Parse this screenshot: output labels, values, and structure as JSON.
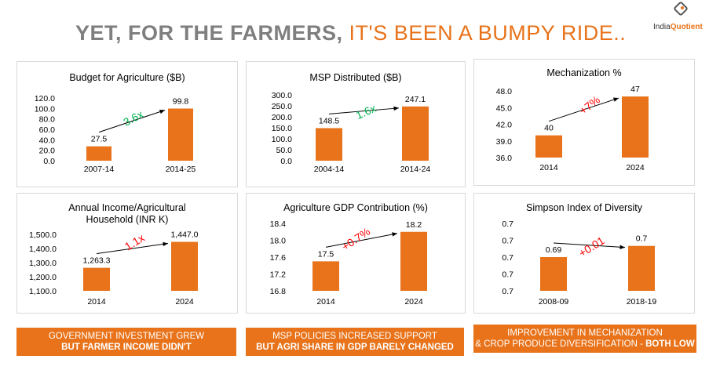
{
  "header": {
    "title_part1": "YET, FOR THE FARMERS,",
    "title_part2": "IT'S BEEN A BUMPY RIDE..",
    "logo_text": "India",
    "logo_text_accent": "Quotient"
  },
  "colors": {
    "bar": "#e8731a",
    "title_grey": "#7f7f7f",
    "accent_red": "#ff0000",
    "accent_green": "#00b050"
  },
  "banners": [
    {
      "line1": "GOVERNMENT INVESTMENT GREW",
      "line2": "BUT FARMER INCOME DIDN'T"
    },
    {
      "line1": "MSP POLICIES INCREASED SUPPORT",
      "line2": "BUT AGRI SHARE IN GDP BARELY CHANGED"
    },
    {
      "line1": "IMPROVEMENT IN MECHANIZATION",
      "line2_prefix": "& CROP PRODUCE DIVERSIFICATION - ",
      "line2_bold": "BOTH LOW"
    }
  ],
  "chart_data": [
    {
      "type": "bar",
      "title": [
        "Budget for Agriculture ($B)"
      ],
      "categories": [
        "2007-14",
        "2014-25"
      ],
      "values": [
        27.5,
        99.8
      ],
      "value_labels": [
        "27.5",
        "99.8"
      ],
      "ylim": [
        0,
        120
      ],
      "yticks": [
        "0.0",
        "20.0",
        "40.0",
        "60.0",
        "80.0",
        "100.0",
        "120.0"
      ],
      "annotation": "3.6x",
      "annotation_color": "#00b050",
      "grid": false
    },
    {
      "type": "bar",
      "title": [
        "MSP Distributed ($B)"
      ],
      "categories": [
        "2004-14",
        "2014-24"
      ],
      "values": [
        148.5,
        247.1
      ],
      "value_labels": [
        "148.5",
        "247.1"
      ],
      "ylim": [
        0,
        300
      ],
      "yticks": [
        "0.0",
        "50.0",
        "100.0",
        "150.0",
        "200.0",
        "250.0",
        "300.0"
      ],
      "annotation": "1.6x",
      "annotation_color": "#00b050",
      "grid": false
    },
    {
      "type": "bar",
      "title": [
        "Mechanization %"
      ],
      "categories": [
        "2014",
        "2024"
      ],
      "values": [
        40,
        47
      ],
      "value_labels": [
        "40",
        "47"
      ],
      "ylim": [
        36,
        48
      ],
      "yticks": [
        "36.0",
        "39.0",
        "42.0",
        "45.0",
        "48.0"
      ],
      "annotation": "+7%",
      "annotation_color": "#ff0000",
      "grid": false
    },
    {
      "type": "bar",
      "title": [
        "Annual Income/Agricultural",
        "Household (INR K)"
      ],
      "categories": [
        "2014",
        "2024"
      ],
      "values": [
        1263.3,
        1447.0
      ],
      "value_labels": [
        "1,263.3",
        "1,447.0"
      ],
      "ylim": [
        1100,
        1500
      ],
      "yticks": [
        "1,100.0",
        "1,200.0",
        "1,300.0",
        "1,400.0",
        "1,500.0"
      ],
      "annotation": "1.1x",
      "annotation_color": "#ff0000",
      "grid": false
    },
    {
      "type": "bar",
      "title": [
        "Agriculture GDP Contribution (%)"
      ],
      "categories": [
        "2014",
        "2024"
      ],
      "values": [
        17.5,
        18.2
      ],
      "value_labels": [
        "17.5",
        "18.2"
      ],
      "ylim": [
        16.8,
        18.4
      ],
      "yticks": [
        "16.8",
        "17.2",
        "17.6",
        "18.0",
        "18.4"
      ],
      "annotation": "+0.7%",
      "annotation_color": "#ff0000",
      "grid": false
    },
    {
      "type": "bar",
      "title": [
        "Simpson Index of Diversity"
      ],
      "categories": [
        "2008-09",
        "2018-19"
      ],
      "values": [
        0.69,
        0.7
      ],
      "value_labels": [
        "0.69",
        "0.7"
      ],
      "ylim": [
        0.66,
        0.72
      ],
      "yticks": [
        "0.7",
        "0.7",
        "0.7",
        "0.7",
        "0.7"
      ],
      "annotation": "+0.01",
      "annotation_color": "#ff0000",
      "grid": false
    }
  ]
}
